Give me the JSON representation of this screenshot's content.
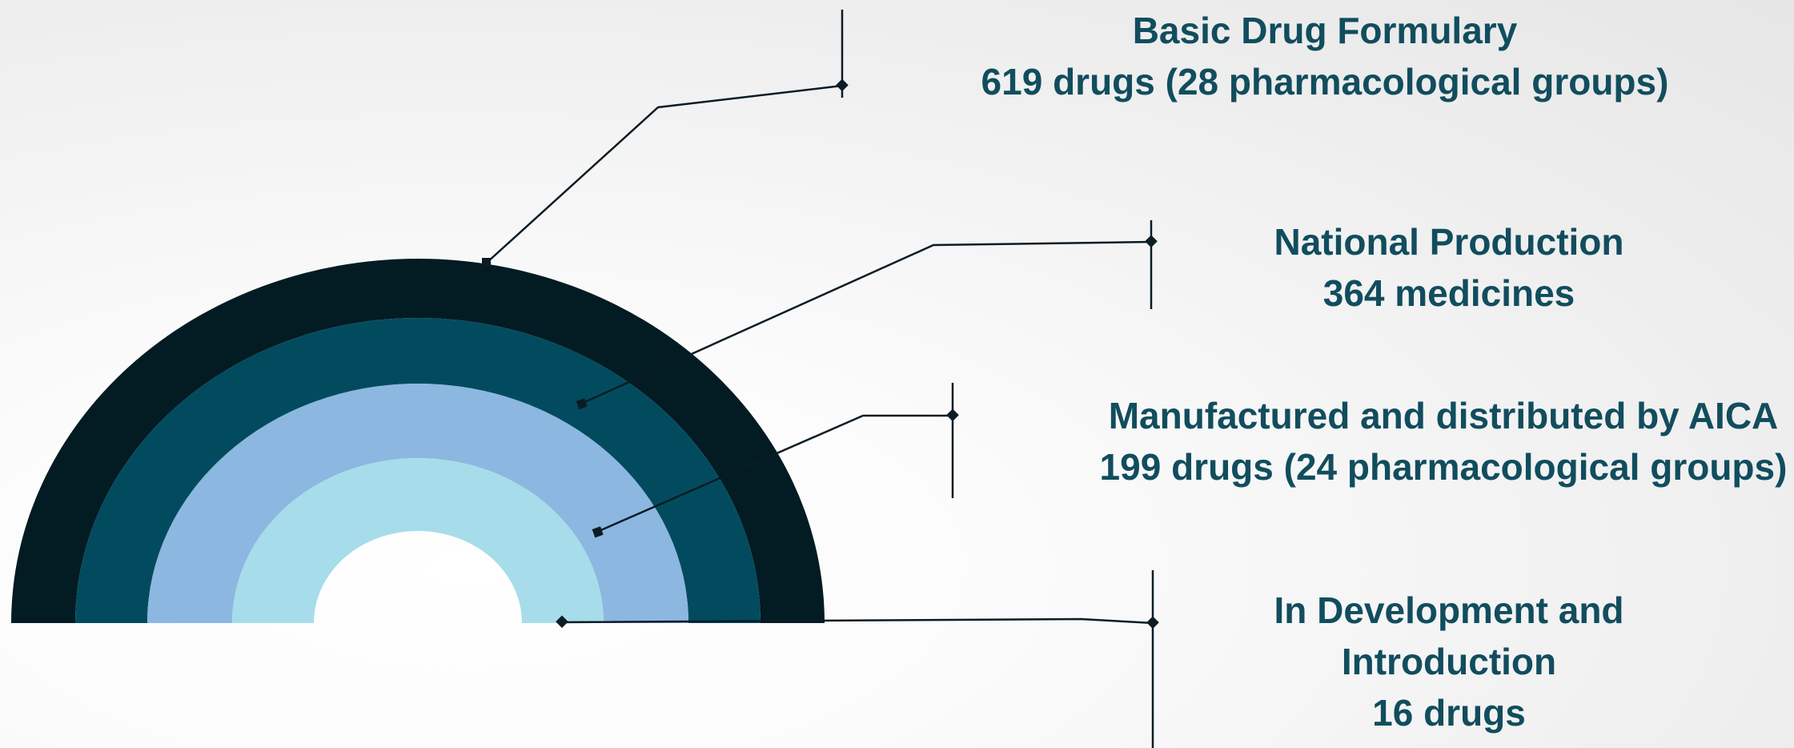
{
  "colors": {
    "ring_outer": "#031b22",
    "ring_second": "#024b5f",
    "ring_third": "#8cb7e0",
    "ring_inner": "#a7dcea",
    "connector": "#0b1c24",
    "label_text": "#114d5e"
  },
  "levels": [
    {
      "name": "Basic Drug Formulary",
      "lines": [
        "Basic Drug Formulary",
        "619 drugs (28 pharmacological groups)"
      ],
      "count": 619,
      "groups": 28
    },
    {
      "name": "National Production",
      "lines": [
        "National Production",
        "364 medicines"
      ],
      "count": 364
    },
    {
      "name": "Manufactured and distributed by AICA",
      "lines": [
        "Manufactured and distributed by AICA",
        "199 drugs (24 pharmacological groups)"
      ],
      "count": 199,
      "groups": 24
    },
    {
      "name": "In Development and Introduction",
      "lines": [
        "In Development and",
        "Introduction",
        "16 drugs"
      ],
      "count": 16
    }
  ]
}
